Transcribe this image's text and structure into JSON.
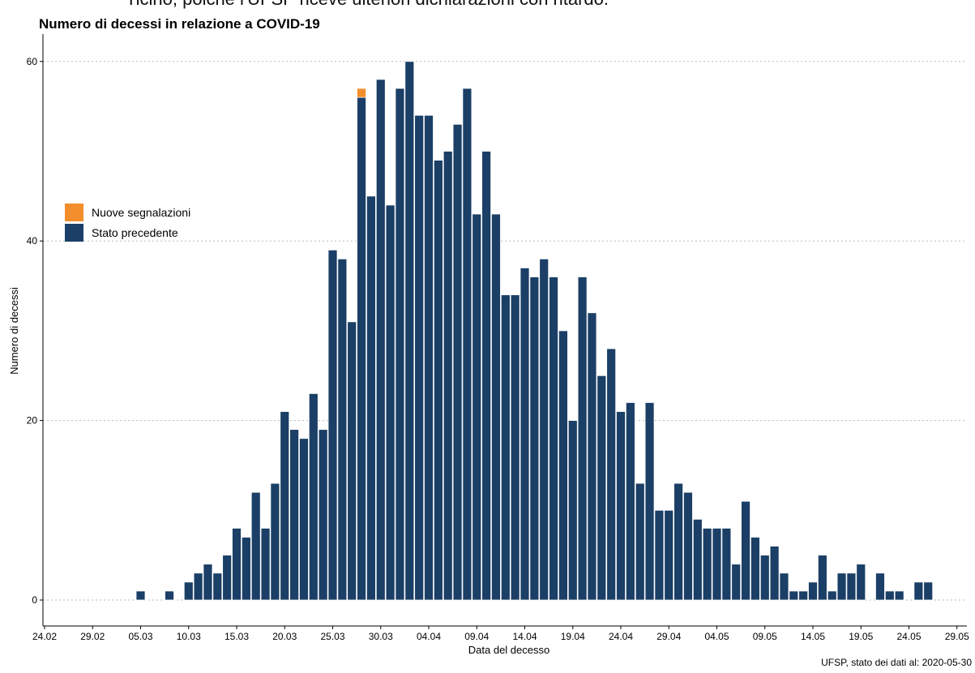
{
  "header": {
    "clipped_text": "Ticino, poiché l'UFSP riceve ulteriori dichiarazioni con ritardo."
  },
  "chart_data": {
    "type": "bar",
    "title": "Numero di decessi in relazione a COVID-19",
    "xlabel": "Data del decesso",
    "ylabel": "Numero di decessi",
    "ylim": [
      -3,
      62
    ],
    "yticks": [
      0,
      20,
      40,
      60
    ],
    "xticks": [
      "24.02",
      "29.02",
      "05.03",
      "10.03",
      "15.03",
      "20.03",
      "25.03",
      "30.03",
      "04.04",
      "09.04",
      "14.04",
      "19.04",
      "24.04",
      "29.04",
      "04.05",
      "09.05",
      "14.05",
      "19.05",
      "24.05",
      "29.05"
    ],
    "grid": true,
    "legend_position": "left",
    "colors": {
      "new": "#F28E2B",
      "previous": "#1B3F66"
    },
    "first_date": "2020-03-05",
    "series": [
      {
        "name": "Stato precedente",
        "values": [
          1,
          0,
          0,
          1,
          0,
          2,
          3,
          4,
          3,
          5,
          8,
          7,
          12,
          8,
          13,
          21,
          19,
          18,
          23,
          19,
          39,
          38,
          31,
          56,
          45,
          58,
          44,
          57,
          60,
          54,
          54,
          49,
          50,
          53,
          57,
          43,
          50,
          43,
          34,
          34,
          37,
          36,
          38,
          36,
          30,
          20,
          36,
          32,
          25,
          28,
          21,
          22,
          13,
          22,
          10,
          10,
          13,
          12,
          9,
          8,
          8,
          8,
          4,
          11,
          7,
          5,
          6,
          3,
          1,
          1,
          2,
          5,
          1,
          3,
          3,
          4,
          0,
          3,
          1,
          1,
          0,
          2,
          2
        ]
      },
      {
        "name": "Nuove segnalazioni",
        "values": [
          0,
          0,
          0,
          0,
          0,
          0,
          0,
          0,
          0,
          0,
          0,
          0,
          0,
          0,
          0,
          0,
          0,
          0,
          0,
          0,
          0,
          0,
          0,
          1,
          0,
          0,
          0,
          0,
          0,
          0,
          0,
          0,
          0,
          0,
          0,
          0,
          0,
          0,
          0,
          0,
          0,
          0,
          0,
          0,
          0,
          0,
          0,
          0,
          0,
          0,
          0,
          0,
          0,
          0,
          0,
          0,
          0,
          0,
          0,
          0,
          0,
          0,
          0,
          0,
          0,
          0,
          0,
          0,
          0,
          0,
          0,
          0,
          0,
          0,
          0,
          0,
          0,
          0,
          0,
          0,
          0,
          0,
          0
        ]
      }
    ]
  },
  "legend": {
    "items": [
      {
        "label": "Nuove segnalazioni",
        "color": "#F28E2B"
      },
      {
        "label": "Stato precedente",
        "color": "#1B3F66"
      }
    ]
  },
  "caption": "UFSP, stato dei dati al: 2020-05-30"
}
